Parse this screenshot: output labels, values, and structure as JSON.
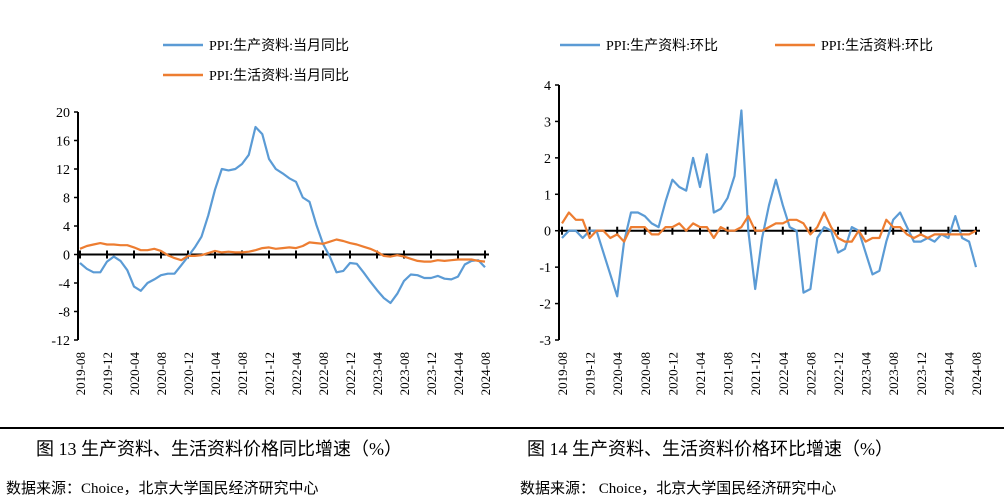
{
  "colors": {
    "series1": "#5B9BD5",
    "series2": "#ED7D31",
    "axis": "#000000"
  },
  "chart_data": [
    {
      "type": "line",
      "ylim": [
        -12,
        20
      ],
      "yticks": [
        20,
        16,
        12,
        8,
        4,
        0,
        -4,
        -8,
        -12
      ],
      "x_tick_labels": [
        "2019-08",
        "2019-12",
        "2020-04",
        "2020-08",
        "2020-12",
        "2021-04",
        "2021-08",
        "2021-12",
        "2022-04",
        "2022-08",
        "2022-12",
        "2023-04",
        "2023-08",
        "2023-12",
        "2024-04",
        "2024-08"
      ],
      "x_range": [
        "2019-08",
        "2024-08"
      ],
      "legend": "top",
      "grid": false,
      "series": [
        {
          "name": "PPI:生产资料:当月同比",
          "values": [
            -1.2,
            -2.0,
            -2.5,
            -2.5,
            -1.0,
            -0.3,
            -0.9,
            -2.2,
            -4.5,
            -5.1,
            -4.0,
            -3.5,
            -2.9,
            -2.7,
            -2.7,
            -1.5,
            -0.3,
            1.0,
            2.5,
            5.5,
            9.1,
            12.0,
            11.8,
            12.0,
            12.7,
            14.0,
            17.9,
            16.9,
            13.4,
            12.0,
            11.4,
            10.7,
            10.2,
            8.0,
            7.4,
            4.2,
            1.5,
            -0.3,
            -2.5,
            -2.3,
            -1.2,
            -1.3,
            -2.5,
            -3.8,
            -5.0,
            -6.1,
            -6.8,
            -5.5,
            -3.7,
            -2.8,
            -2.9,
            -3.3,
            -3.3,
            -3.0,
            -3.4,
            -3.5,
            -3.1,
            -1.4,
            -0.9,
            -0.8,
            -1.8
          ]
        },
        {
          "name": "PPI:生活资料:当月同比",
          "values": [
            0.8,
            1.2,
            1.4,
            1.6,
            1.4,
            1.4,
            1.3,
            1.3,
            1.0,
            0.6,
            0.6,
            0.8,
            0.5,
            -0.1,
            -0.5,
            -0.8,
            -0.2,
            -0.2,
            -0.1,
            0.2,
            0.5,
            0.3,
            0.4,
            0.3,
            0.3,
            0.4,
            0.6,
            0.9,
            1.0,
            0.8,
            0.9,
            1.0,
            0.9,
            1.2,
            1.7,
            1.6,
            1.5,
            1.8,
            2.1,
            1.9,
            1.6,
            1.4,
            1.1,
            0.8,
            0.4,
            -0.2,
            -0.3,
            -0.1,
            -0.3,
            -0.6,
            -0.9,
            -1.0,
            -1.0,
            -0.8,
            -0.9,
            -0.8,
            -0.7,
            -0.7,
            -0.7,
            -0.9,
            -1.0
          ]
        }
      ]
    },
    {
      "type": "line",
      "ylim": [
        -3,
        4
      ],
      "yticks": [
        4,
        3,
        2,
        1,
        0,
        -1,
        -2,
        -3
      ],
      "x_tick_labels": [
        "2019-08",
        "2019-12",
        "2020-04",
        "2020-08",
        "2020-12",
        "2021-04",
        "2021-08",
        "2021-12",
        "2022-04",
        "2022-08",
        "2022-12",
        "2023-04",
        "2023-08",
        "2023-12",
        "2024-04",
        "2024-08"
      ],
      "x_range": [
        "2019-08",
        "2024-08"
      ],
      "legend": "top",
      "grid": false,
      "series": [
        {
          "name": "PPI:生产资料:环比",
          "values": [
            -0.2,
            0.0,
            0.0,
            -0.2,
            0.0,
            0.0,
            -0.6,
            -1.2,
            -1.8,
            -0.3,
            0.5,
            0.5,
            0.4,
            0.2,
            0.1,
            0.8,
            1.4,
            1.2,
            1.1,
            2.0,
            1.2,
            2.1,
            0.5,
            0.6,
            0.9,
            1.5,
            3.3,
            0.0,
            -1.6,
            -0.2,
            0.7,
            1.4,
            0.7,
            0.1,
            0.0,
            -1.7,
            -1.6,
            -0.2,
            0.1,
            0.0,
            -0.6,
            -0.5,
            0.1,
            0.0,
            -0.6,
            -1.2,
            -1.1,
            -0.3,
            0.3,
            0.5,
            0.1,
            -0.3,
            -0.3,
            -0.2,
            -0.3,
            -0.1,
            -0.2,
            0.4,
            -0.2,
            -0.3,
            -1.0
          ]
        },
        {
          "name": "PPI:生活资料:环比",
          "values": [
            0.2,
            0.5,
            0.3,
            0.3,
            -0.2,
            0.0,
            0.0,
            -0.2,
            -0.1,
            -0.3,
            0.1,
            0.1,
            0.1,
            -0.1,
            -0.1,
            0.1,
            0.1,
            0.2,
            0.0,
            0.2,
            0.1,
            0.1,
            -0.2,
            0.1,
            0.0,
            0.0,
            0.1,
            0.4,
            0.0,
            0.0,
            0.1,
            0.2,
            0.2,
            0.3,
            0.3,
            0.2,
            -0.1,
            0.1,
            0.5,
            0.1,
            -0.2,
            -0.3,
            -0.3,
            0.0,
            -0.3,
            -0.2,
            -0.2,
            0.3,
            0.1,
            0.1,
            -0.1,
            -0.2,
            -0.1,
            -0.2,
            -0.1,
            -0.1,
            -0.1,
            -0.1,
            -0.1,
            -0.1,
            0.0
          ]
        }
      ]
    }
  ],
  "captions": {
    "fig13": "图 13  生产资料、生活资料价格同比增速（%）",
    "fig14": "图 14  生产资料、生活资料价格环比增速（%）",
    "source13": "数据来源：Choice，北京大学国民经济研究中心",
    "source14": "数据来源：  Choice，北京大学国民经济研究中心"
  }
}
